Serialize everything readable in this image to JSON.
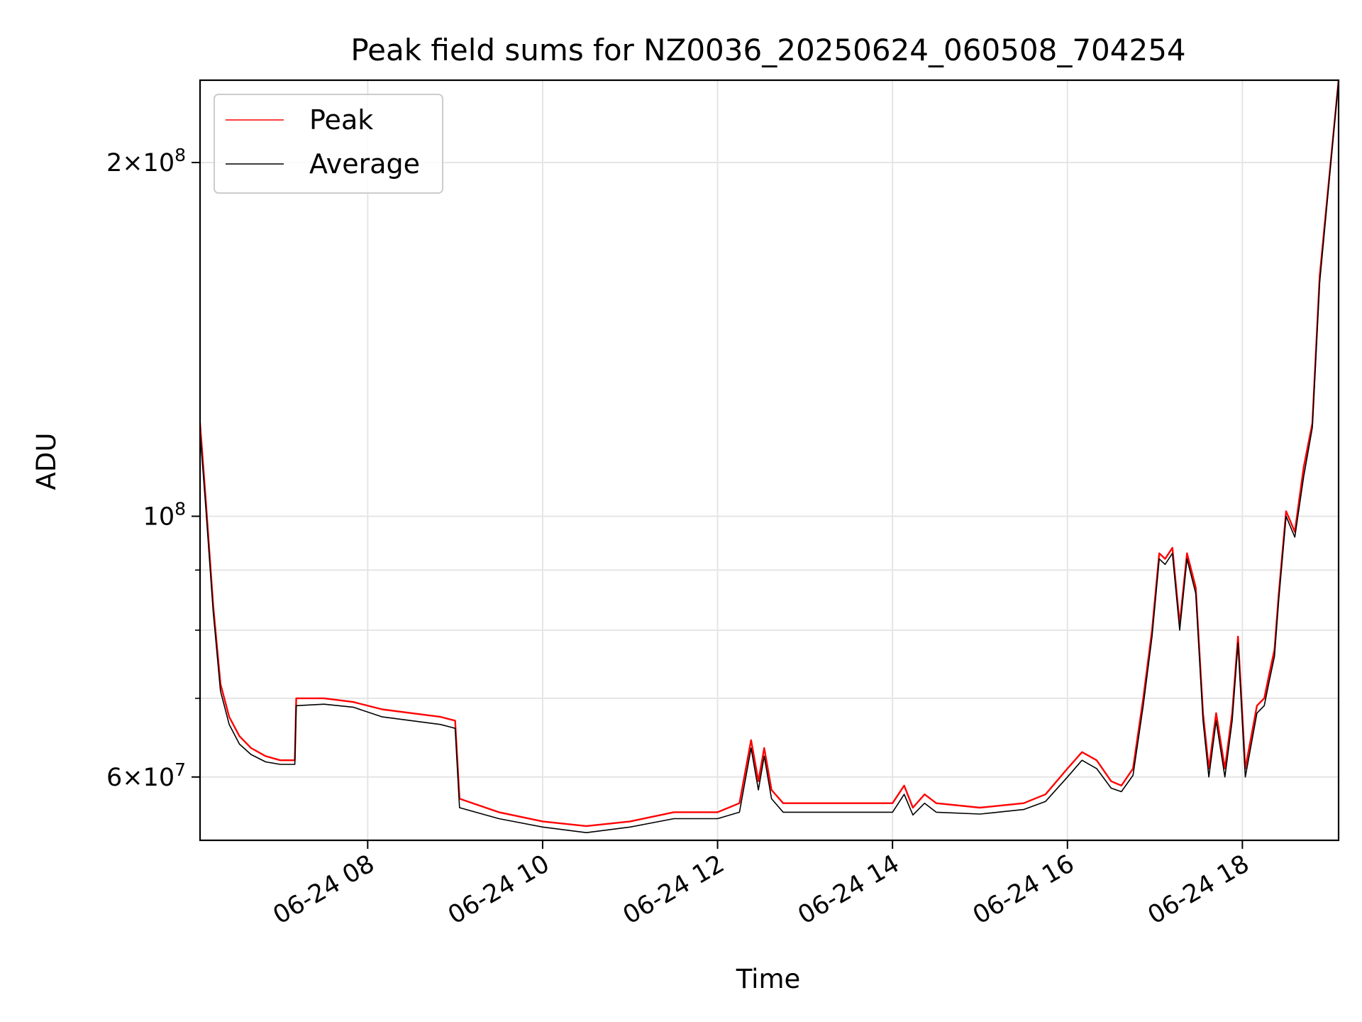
{
  "chart_data": {
    "type": "line",
    "title": "Peak field sums for NZ0036_20250624_060508_704254",
    "xlabel": "Time",
    "ylabel": "ADU",
    "x_scale": "time",
    "y_scale": "log",
    "xlim": [
      "2025-06-24 06:05",
      "2025-06-24 19:06"
    ],
    "ylim": [
      53000000,
      235000000
    ],
    "x_ticks": [
      "2025-06-24 08:00",
      "2025-06-24 10:00",
      "2025-06-24 12:00",
      "2025-06-24 14:00",
      "2025-06-24 16:00",
      "2025-06-24 18:00"
    ],
    "x_tick_labels": [
      "06-24 08",
      "06-24 10",
      "06-24 12",
      "06-24 14",
      "06-24 16",
      "06-24 18"
    ],
    "y_major_ticks": [
      200000000,
      100000000,
      60000000
    ],
    "y_tick_labels": [
      "2×10^8",
      "10^8",
      "6×10^7"
    ],
    "y_minor_gridlines": [
      70000000,
      80000000,
      90000000
    ],
    "grid": true,
    "legend_position": "upper-left",
    "series": [
      {
        "name": "Peak",
        "color": "#ff0000",
        "x": [
          "2025-06-24 06:05",
          "2025-06-24 06:09",
          "2025-06-24 06:14",
          "2025-06-24 06:19",
          "2025-06-24 06:25",
          "2025-06-24 06:32",
          "2025-06-24 06:40",
          "2025-06-24 06:50",
          "2025-06-24 07:00",
          "2025-06-24 07:10",
          "2025-06-24 07:11",
          "2025-06-24 07:30",
          "2025-06-24 07:50",
          "2025-06-24 08:10",
          "2025-06-24 08:30",
          "2025-06-24 08:50",
          "2025-06-24 09:00",
          "2025-06-24 09:03",
          "2025-06-24 09:30",
          "2025-06-24 10:00",
          "2025-06-24 10:30",
          "2025-06-24 11:00",
          "2025-06-24 11:30",
          "2025-06-24 12:00",
          "2025-06-24 12:15",
          "2025-06-24 12:23",
          "2025-06-24 12:28",
          "2025-06-24 12:32",
          "2025-06-24 12:37",
          "2025-06-24 12:45",
          "2025-06-24 13:00",
          "2025-06-24 13:30",
          "2025-06-24 14:00",
          "2025-06-24 14:08",
          "2025-06-24 14:14",
          "2025-06-24 14:22",
          "2025-06-24 14:30",
          "2025-06-24 15:00",
          "2025-06-24 15:30",
          "2025-06-24 15:45",
          "2025-06-24 16:00",
          "2025-06-24 16:10",
          "2025-06-24 16:20",
          "2025-06-24 16:30",
          "2025-06-24 16:37",
          "2025-06-24 16:45",
          "2025-06-24 16:52",
          "2025-06-24 16:58",
          "2025-06-24 17:03",
          "2025-06-24 17:07",
          "2025-06-24 17:12",
          "2025-06-24 17:17",
          "2025-06-24 17:22",
          "2025-06-24 17:28",
          "2025-06-24 17:33",
          "2025-06-24 17:37",
          "2025-06-24 17:42",
          "2025-06-24 17:48",
          "2025-06-24 17:53",
          "2025-06-24 17:57",
          "2025-06-24 18:02",
          "2025-06-24 18:10",
          "2025-06-24 18:15",
          "2025-06-24 18:18",
          "2025-06-24 18:22",
          "2025-06-24 18:25",
          "2025-06-24 18:30",
          "2025-06-24 18:36",
          "2025-06-24 18:42",
          "2025-06-24 18:48",
          "2025-06-24 18:53",
          "2025-06-24 19:06"
        ],
        "values": [
          120000000,
          103000000,
          84000000,
          72000000,
          67500000,
          65000000,
          63500000,
          62500000,
          62000000,
          62000000,
          70000000,
          70000000,
          69500000,
          68500000,
          68000000,
          67500000,
          67000000,
          57500000,
          56000000,
          55000000,
          54500000,
          55000000,
          56000000,
          56000000,
          57000000,
          64500000,
          59500000,
          63500000,
          58500000,
          57000000,
          57000000,
          57000000,
          57000000,
          59000000,
          56500000,
          58000000,
          57000000,
          56500000,
          57000000,
          58000000,
          61000000,
          63000000,
          62000000,
          59500000,
          59000000,
          61000000,
          70000000,
          80000000,
          93000000,
          92000000,
          94000000,
          81000000,
          93000000,
          87000000,
          68000000,
          61000000,
          68000000,
          61000000,
          68000000,
          79000000,
          61000000,
          69000000,
          70000000,
          73000000,
          77000000,
          86000000,
          101000000,
          97000000,
          110000000,
          120000000,
          160000000,
          235000000
        ]
      },
      {
        "name": "Average",
        "color": "#000000",
        "x": [
          "2025-06-24 06:05",
          "2025-06-24 06:09",
          "2025-06-24 06:14",
          "2025-06-24 06:19",
          "2025-06-24 06:25",
          "2025-06-24 06:32",
          "2025-06-24 06:40",
          "2025-06-24 06:50",
          "2025-06-24 07:00",
          "2025-06-24 07:10",
          "2025-06-24 07:11",
          "2025-06-24 07:30",
          "2025-06-24 07:50",
          "2025-06-24 08:10",
          "2025-06-24 08:30",
          "2025-06-24 08:50",
          "2025-06-24 09:00",
          "2025-06-24 09:03",
          "2025-06-24 09:30",
          "2025-06-24 10:00",
          "2025-06-24 10:30",
          "2025-06-24 11:00",
          "2025-06-24 11:30",
          "2025-06-24 12:00",
          "2025-06-24 12:15",
          "2025-06-24 12:23",
          "2025-06-24 12:28",
          "2025-06-24 12:32",
          "2025-06-24 12:37",
          "2025-06-24 12:45",
          "2025-06-24 13:00",
          "2025-06-24 13:30",
          "2025-06-24 14:00",
          "2025-06-24 14:08",
          "2025-06-24 14:14",
          "2025-06-24 14:22",
          "2025-06-24 14:30",
          "2025-06-24 15:00",
          "2025-06-24 15:30",
          "2025-06-24 15:45",
          "2025-06-24 16:00",
          "2025-06-24 16:10",
          "2025-06-24 16:20",
          "2025-06-24 16:30",
          "2025-06-24 16:37",
          "2025-06-24 16:45",
          "2025-06-24 16:52",
          "2025-06-24 16:58",
          "2025-06-24 17:03",
          "2025-06-24 17:07",
          "2025-06-24 17:12",
          "2025-06-24 17:17",
          "2025-06-24 17:22",
          "2025-06-24 17:28",
          "2025-06-24 17:33",
          "2025-06-24 17:37",
          "2025-06-24 17:42",
          "2025-06-24 17:48",
          "2025-06-24 17:53",
          "2025-06-24 17:57",
          "2025-06-24 18:02",
          "2025-06-24 18:10",
          "2025-06-24 18:15",
          "2025-06-24 18:18",
          "2025-06-24 18:22",
          "2025-06-24 18:25",
          "2025-06-24 18:30",
          "2025-06-24 18:36",
          "2025-06-24 18:42",
          "2025-06-24 18:48",
          "2025-06-24 18:53",
          "2025-06-24 19:06"
        ],
        "values": [
          118000000,
          101500000,
          83000000,
          71000000,
          66500000,
          64000000,
          62700000,
          61800000,
          61500000,
          61500000,
          69000000,
          69200000,
          68800000,
          67500000,
          67000000,
          66500000,
          66000000,
          56500000,
          55300000,
          54400000,
          53800000,
          54400000,
          55300000,
          55300000,
          56000000,
          63500000,
          58500000,
          62500000,
          57500000,
          56000000,
          56000000,
          56000000,
          56000000,
          58000000,
          55700000,
          57000000,
          56000000,
          55800000,
          56300000,
          57200000,
          60000000,
          62000000,
          61000000,
          58700000,
          58300000,
          60200000,
          69000000,
          79000000,
          92000000,
          91000000,
          93000000,
          80000000,
          92000000,
          86000000,
          67000000,
          60000000,
          67000000,
          60000000,
          67000000,
          78000000,
          60000000,
          68000000,
          69000000,
          72000000,
          76000000,
          85000000,
          100000000,
          96000000,
          108000000,
          119000000,
          158000000,
          235000000
        ]
      }
    ]
  }
}
